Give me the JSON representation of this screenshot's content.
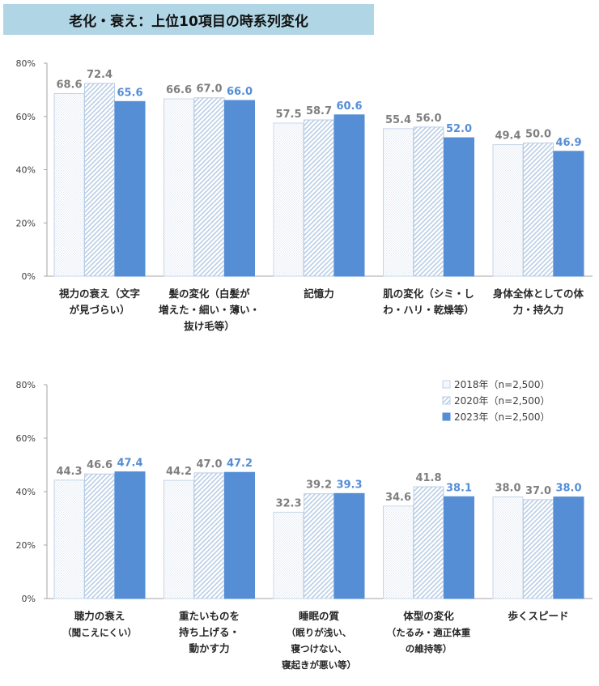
{
  "title": "老化・衰え：上位10項目の時系列変化",
  "colors": {
    "s2018": "#dbe5f1",
    "s2020": "#b9cde5",
    "s2023": "#558ed5",
    "label_gray": "#7f7f7f",
    "label_blue": "#558ed5"
  },
  "chart_data": [
    {
      "type": "bar",
      "ylim": [
        0,
        80
      ],
      "yticks": [
        "0%",
        "20%",
        "40%",
        "60%",
        "80%"
      ],
      "grid": false,
      "categories": [
        [
          "視力の衰え（文字",
          "が見づらい）"
        ],
        [
          "髪の変化（白髪が",
          "増えた・細い・薄い・",
          "抜け毛等）"
        ],
        [
          "記憶力"
        ],
        [
          "肌の変化（シミ・し",
          "わ・ハリ・乾燥等）"
        ],
        [
          "身体全体としての体",
          "力・持久力"
        ]
      ],
      "series": [
        {
          "name": "2018年（n=2,500）",
          "values": [
            68.6,
            66.6,
            57.5,
            55.4,
            49.4
          ]
        },
        {
          "name": "2020年（n=2,500）",
          "values": [
            72.4,
            67.0,
            58.7,
            56.0,
            50.0
          ]
        },
        {
          "name": "2023年（n=2,500）",
          "values": [
            65.6,
            66.0,
            60.6,
            52.0,
            46.9
          ]
        }
      ]
    },
    {
      "type": "bar",
      "ylim": [
        0,
        80
      ],
      "yticks": [
        "0%",
        "20%",
        "40%",
        "60%",
        "80%"
      ],
      "grid": false,
      "legend_position": "top-right",
      "categories": [
        [
          "聴力の衰え",
          "（聞こえにくい）"
        ],
        [
          "重たいものを",
          "持ち上げる・",
          "動かす力"
        ],
        [
          "睡眠の質",
          "（眠りが浅い、",
          "寝つけない、",
          "寝起きが悪い等）"
        ],
        [
          "体型の変化",
          "（たるみ・適正体重",
          "の維持等）"
        ],
        [
          "歩くスピード"
        ]
      ],
      "series": [
        {
          "name": "2018年（n=2,500）",
          "values": [
            44.3,
            44.2,
            32.3,
            34.6,
            38.0
          ]
        },
        {
          "name": "2020年（n=2,500）",
          "values": [
            46.6,
            47.0,
            39.2,
            41.8,
            37.0
          ]
        },
        {
          "name": "2023年（n=2,500）",
          "values": [
            47.4,
            47.2,
            39.3,
            38.1,
            38.0
          ]
        }
      ]
    }
  ]
}
